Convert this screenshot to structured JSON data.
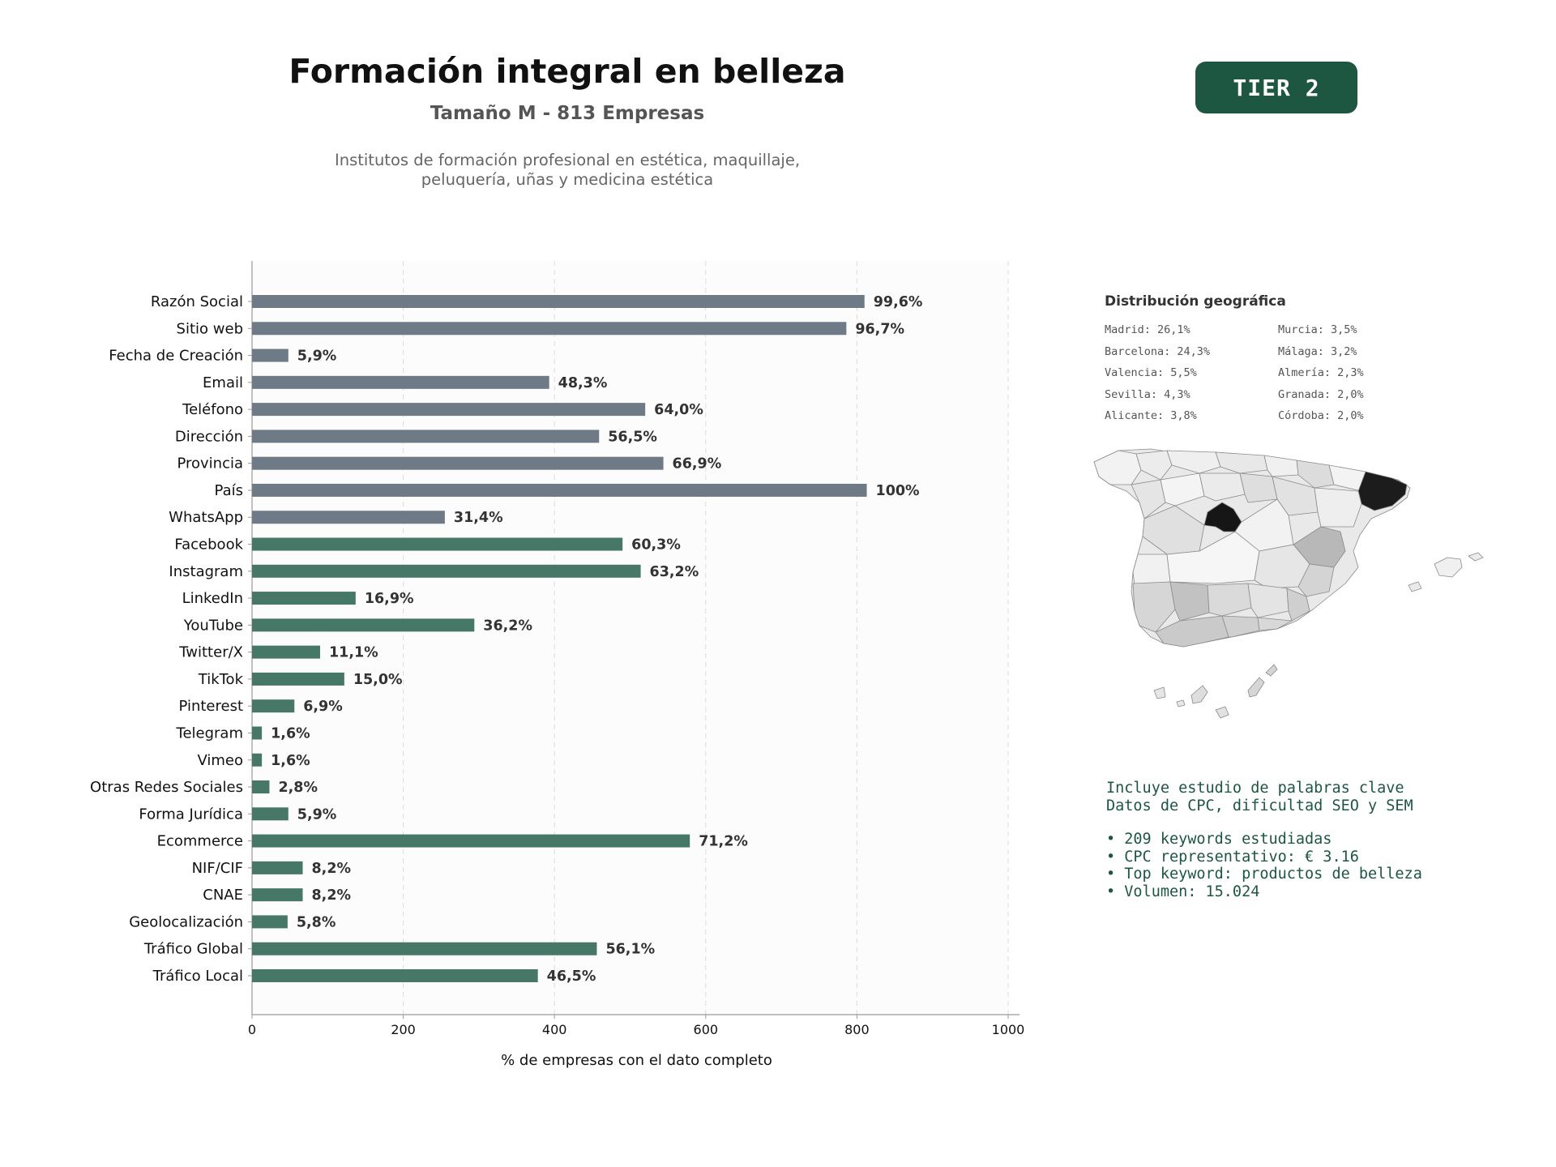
{
  "header": {
    "title": "Formación integral en belleza",
    "subtitle": "Tamaño M - 813 Empresas",
    "description_line1": "Institutos de formación profesional en estética, maquillaje,",
    "description_line2": "peluquería, uñas y medicina estética",
    "tier_label": "TIER 2"
  },
  "colors": {
    "gray_bar": "#6e7a86",
    "green_bar": "#477766",
    "tier_bg": "#1d5641",
    "keyword_text": "#1d5641"
  },
  "chart_data": {
    "type": "bar",
    "orientation": "horizontal",
    "xlabel": "% de empresas con el dato completo",
    "xlim": [
      0,
      1000
    ],
    "xticks": [
      0,
      200,
      400,
      600,
      800,
      1000
    ],
    "grid": "vertical dashed",
    "categories": [
      "Razón Social",
      "Sitio web",
      "Fecha de Creación",
      "Email",
      "Teléfono",
      "Dirección",
      "Provincia",
      "País",
      "WhatsApp",
      "Facebook",
      "Instagram",
      "LinkedIn",
      "YouTube",
      "Twitter/X",
      "TikTok",
      "Pinterest",
      "Telegram",
      "Vimeo",
      "Otras Redes Sociales",
      "Forma Jurídica",
      "Ecommerce",
      "NIF/CIF",
      "CNAE",
      "Geolocalización",
      "Tráfico Global",
      "Tráfico Local"
    ],
    "values": [
      810,
      786,
      48,
      393,
      520,
      459,
      544,
      813,
      255,
      490,
      514,
      137,
      294,
      90,
      122,
      56,
      13,
      13,
      23,
      48,
      579,
      67,
      67,
      47,
      456,
      378
    ],
    "labels": [
      "99,6%",
      "96,7%",
      "5,9%",
      "48,3%",
      "64,0%",
      "56,5%",
      "66,9%",
      "100%",
      "31,4%",
      "60,3%",
      "63,2%",
      "16,9%",
      "36,2%",
      "11,1%",
      "15,0%",
      "6,9%",
      "1,6%",
      "1,6%",
      "2,8%",
      "5,9%",
      "71,2%",
      "8,2%",
      "8,2%",
      "5,8%",
      "56,1%",
      "46,5%"
    ],
    "bar_groups": [
      "gray",
      "gray",
      "gray",
      "gray",
      "gray",
      "gray",
      "gray",
      "gray",
      "gray",
      "green",
      "green",
      "green",
      "green",
      "green",
      "green",
      "green",
      "green",
      "green",
      "green",
      "green",
      "green",
      "green",
      "green",
      "green",
      "green",
      "green"
    ]
  },
  "geo": {
    "title": "Distribución geográfica",
    "items": [
      "Madrid: 26,1%",
      "Murcia: 3,5%",
      "Barcelona: 24,3%",
      "Málaga: 3,2%",
      "Valencia: 5,5%",
      "Almería: 2,3%",
      "Sevilla: 4,3%",
      "Granada: 2,0%",
      "Alicante: 3,8%",
      "Córdoba: 2,0%"
    ]
  },
  "keywords": {
    "line1": "Incluye estudio de palabras clave",
    "line2": "Datos de CPC, dificultad SEO y SEM",
    "bullet1": "• 209 keywords estudiadas",
    "bullet2": "• CPC representativo: € 3.16",
    "bullet3": "• Top keyword: productos de belleza",
    "bullet4": "• Volumen: 15.024"
  }
}
